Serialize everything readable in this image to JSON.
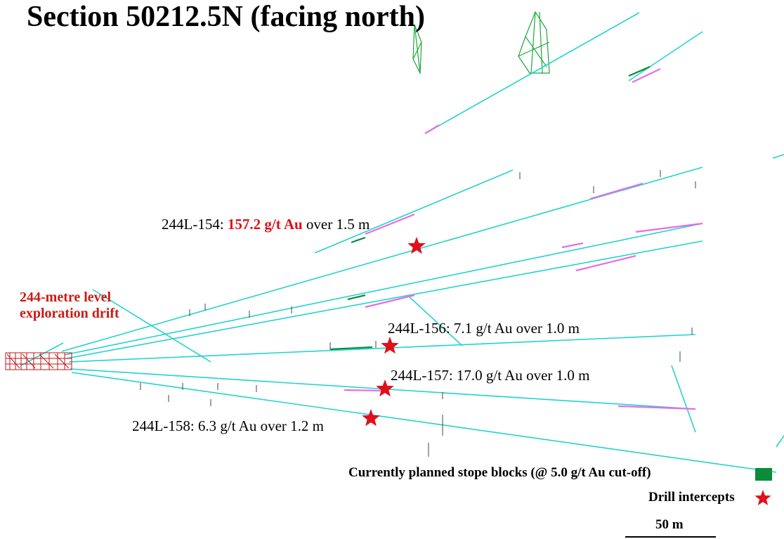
{
  "title": "Section 50212.5N (facing north)",
  "level_label": {
    "line1": "244-metre level",
    "line2": "exploration drift"
  },
  "intercepts": [
    {
      "hole": "244L-154:",
      "grade": "157.2 g/t Au",
      "rest": "over 1.5 m",
      "grade_highlight": true
    },
    {
      "hole": "244L-156:",
      "grade": "7.1 g/t Au",
      "rest": "over 1.0 m",
      "grade_highlight": false
    },
    {
      "hole": "244L-157:",
      "grade": "17.0 g/t Au",
      "rest": "over 1.0 m",
      "grade_highlight": false
    },
    {
      "hole": "244L-158:",
      "grade": "6.3 g/t Au",
      "rest": "over 1.2 m",
      "grade_highlight": false
    }
  ],
  "legend": {
    "stope_blocks": "Currently planned stope blocks (@ 5.0 g/t Au cut-off)",
    "drill_intercepts": "Drill intercepts"
  },
  "scale": {
    "label": "50 m"
  },
  "colors": {
    "drillhole": "#22d3d0",
    "assay_interval": "#e46ee4",
    "stope": "#0a8c3a",
    "intercept_star": "#e0101a",
    "drift": "#c0171a",
    "level_label": "#cc1a14"
  }
}
